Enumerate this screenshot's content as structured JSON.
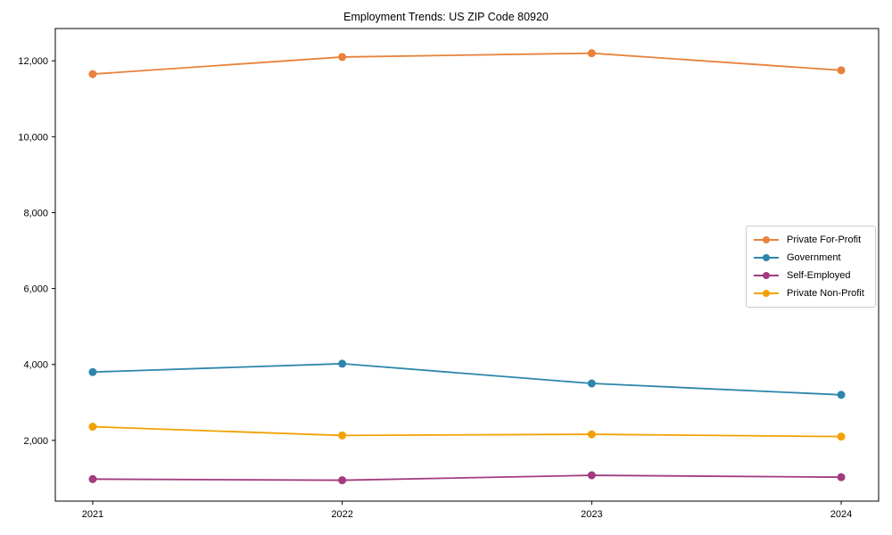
{
  "chart_data": {
    "type": "line",
    "title": "Employment Trends: US ZIP Code 80920",
    "xlabel": "",
    "ylabel": "",
    "x": [
      2021,
      2022,
      2023,
      2024
    ],
    "x_tick_labels": [
      "2021",
      "2022",
      "2023",
      "2024"
    ],
    "y_ticks": [
      2000,
      4000,
      6000,
      8000,
      10000,
      12000
    ],
    "y_tick_labels": [
      "2,000",
      "4,000",
      "6,000",
      "8,000",
      "10,000",
      "12,000"
    ],
    "ylim": [
      400,
      12850
    ],
    "xlim": [
      2020.85,
      2024.15
    ],
    "grid": false,
    "marker": "circle",
    "legend_position": "center-right",
    "series": [
      {
        "name": "Private For-Profit",
        "color": "#E8823C",
        "values": [
          11650,
          12100,
          12200,
          11750
        ]
      },
      {
        "name": "Government",
        "color": "#2E86AB",
        "values": [
          3800,
          4020,
          3500,
          3200
        ]
      },
      {
        "name": "Self-Employed",
        "color": "#A23B80",
        "values": [
          980,
          950,
          1080,
          1030
        ]
      },
      {
        "name": "Private Non-Profit",
        "color": "#F2A104",
        "values": [
          2360,
          2130,
          2160,
          2100
        ]
      }
    ]
  }
}
